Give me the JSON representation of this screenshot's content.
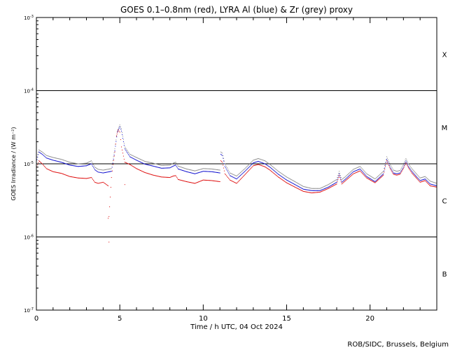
{
  "chart_data": {
    "type": "line",
    "title": "GOES 0.1–0.8nm (red), LYRA Al (blue) & Zr (grey) proxy",
    "xlabel": "Time / h UTC, 04 Oct 2024",
    "ylabel": "GOES Irradiance / (W m⁻²)",
    "credit": "ROB/SIDC, Brussels, Belgium",
    "xlim": [
      0,
      24
    ],
    "ylim": [
      1e-07,
      0.001
    ],
    "yscale": "log",
    "x_ticks": [
      {
        "value": 0,
        "label": "0"
      },
      {
        "value": 5,
        "label": "5"
      },
      {
        "value": 10,
        "label": "10"
      },
      {
        "value": 15,
        "label": "15"
      },
      {
        "value": 20,
        "label": "20"
      }
    ],
    "y_ticks": [
      {
        "value": 0.001,
        "base": "10",
        "exp": "-3"
      },
      {
        "value": 0.0001,
        "base": "10",
        "exp": "-4"
      },
      {
        "value": 1e-05,
        "base": "10",
        "exp": "-5"
      },
      {
        "value": 1e-06,
        "base": "10",
        "exp": "-6"
      },
      {
        "value": 1e-07,
        "base": "10",
        "exp": "-7"
      }
    ],
    "flare_class_lines": [
      0.0001,
      1e-05,
      1e-06
    ],
    "flare_classes": [
      {
        "label": "X",
        "value": 0.000316
      },
      {
        "label": "M",
        "value": 3.16e-05
      },
      {
        "label": "C",
        "value": 3.16e-06
      },
      {
        "label": "B",
        "value": 3.16e-07
      }
    ],
    "colors": {
      "goes": "#dd0000",
      "lyra_al": "#0000cc",
      "lyra_zr": "#888888",
      "axis": "#000000"
    },
    "series": [
      {
        "key": "lyra_zr",
        "x": [
          0,
          0.15,
          0.35,
          0.6,
          1.0,
          1.5,
          2.0,
          2.5,
          3.0,
          3.3,
          3.5,
          3.7,
          4.0,
          4.5,
          4.7,
          4.85,
          5.0,
          5.1,
          5.3,
          5.6,
          6.0,
          6.5,
          7.0,
          7.5,
          8.0,
          8.2,
          8.35,
          8.5,
          9.0,
          9.5,
          10.0,
          10.5,
          11.0,
          11.05,
          11.15,
          11.3,
          11.6,
          12.0,
          12.5,
          13.0,
          13.3,
          13.7,
          14.0,
          14.5,
          15.0,
          15.5,
          16.0,
          16.5,
          17.0,
          17.5,
          18.0,
          18.15,
          18.3,
          18.5,
          19.0,
          19.4,
          19.8,
          20.3,
          20.8,
          21.0,
          21.2,
          21.4,
          21.6,
          21.8,
          22.0,
          22.15,
          22.3,
          22.5,
          22.8,
          23.0,
          23.3,
          23.6,
          24.0
        ],
        "y": [
          1.15e-05,
          1.55e-05,
          1.45e-05,
          1.3e-05,
          1.22e-05,
          1.15e-05,
          1.05e-05,
          1e-05,
          1.02e-05,
          1.1e-05,
          9e-06,
          8.4e-06,
          8.2e-06,
          8.6e-06,
          1.6e-05,
          2.8e-05,
          3.4e-05,
          3e-05,
          1.7e-05,
          1.35e-05,
          1.22e-05,
          1.08e-05,
          1.02e-05,
          9.5e-06,
          9.6e-06,
          1.02e-05,
          1.05e-05,
          9.3e-06,
          8.5e-06,
          8e-06,
          8.6e-06,
          8.5e-06,
          8.2e-06,
          1.45e-05,
          1.4e-05,
          1e-05,
          7.5e-06,
          6.8e-06,
          8.6e-06,
          1.12e-05,
          1.18e-05,
          1.1e-05,
          9.8e-06,
          7.9e-06,
          6.6e-06,
          5.7e-06,
          4.9e-06,
          4.6e-06,
          4.6e-06,
          5.2e-06,
          6.1e-06,
          7.9e-06,
          6.1e-06,
          6.6e-06,
          8.4e-06,
          9.2e-06,
          7.3e-06,
          6.2e-06,
          7.9e-06,
          1.25e-05,
          9.8e-06,
          8.2e-06,
          7.9e-06,
          8.1e-06,
          9.8e-06,
          1.18e-05,
          1e-05,
          8.6e-06,
          7.2e-06,
          6.4e-06,
          6.7e-06,
          5.8e-06,
          5.4e-06
        ]
      },
      {
        "key": "lyra_al",
        "x": [
          0,
          0.15,
          0.35,
          0.6,
          1.0,
          1.5,
          2.0,
          2.5,
          3.0,
          3.3,
          3.5,
          3.7,
          4.0,
          4.5,
          4.7,
          4.85,
          5.0,
          5.1,
          5.3,
          5.6,
          6.0,
          6.5,
          7.0,
          7.5,
          8.0,
          8.2,
          8.35,
          8.5,
          9.0,
          9.5,
          10.0,
          10.5,
          11.0,
          11.05,
          11.15,
          11.3,
          11.6,
          12.0,
          12.5,
          13.0,
          13.3,
          13.7,
          14.0,
          14.5,
          15.0,
          15.5,
          16.0,
          16.5,
          17.0,
          17.5,
          18.0,
          18.15,
          18.3,
          18.5,
          19.0,
          19.4,
          19.8,
          20.3,
          20.8,
          21.0,
          21.2,
          21.4,
          21.6,
          21.8,
          22.0,
          22.15,
          22.3,
          22.5,
          22.8,
          23.0,
          23.3,
          23.6,
          24.0
        ],
        "y": [
          1.05e-05,
          1.45e-05,
          1.35e-05,
          1.2e-05,
          1.12e-05,
          1.05e-05,
          9.6e-06,
          9.2e-06,
          9.4e-06,
          1e-05,
          8.3e-06,
          7.7e-06,
          7.5e-06,
          7.9e-06,
          1.5e-05,
          2.7e-05,
          3.2e-05,
          2.8e-05,
          1.6e-05,
          1.25e-05,
          1.12e-05,
          9.9e-06,
          9.3e-06,
          8.7e-06,
          8.8e-06,
          9.3e-06,
          9.6e-06,
          8.5e-06,
          7.8e-06,
          7.3e-06,
          7.9e-06,
          7.8e-06,
          7.5e-06,
          1.35e-05,
          1.3e-05,
          9.2e-06,
          6.9e-06,
          6.2e-06,
          7.9e-06,
          1.03e-05,
          1.08e-05,
          1e-05,
          9e-06,
          7.2e-06,
          6e-06,
          5.2e-06,
          4.5e-06,
          4.3e-06,
          4.3e-06,
          4.8e-06,
          5.6e-06,
          7.3e-06,
          5.6e-06,
          6.1e-06,
          7.8e-06,
          8.5e-06,
          6.7e-06,
          5.7e-06,
          7.3e-06,
          1.15e-05,
          9e-06,
          7.5e-06,
          7.3e-06,
          7.5e-06,
          9e-06,
          1.09e-05,
          9.2e-06,
          7.9e-06,
          6.6e-06,
          5.9e-06,
          6.2e-06,
          5.3e-06,
          5e-06
        ]
      },
      {
        "key": "goes",
        "x": [
          0,
          0.15,
          0.35,
          0.6,
          1.0,
          1.5,
          2.0,
          2.5,
          3.0,
          3.3,
          3.5,
          3.7,
          4.0,
          4.3,
          4.35,
          4.5,
          4.6,
          4.7,
          4.8,
          4.9,
          5.0,
          5.1,
          5.3,
          5.6,
          6.0,
          6.5,
          7.0,
          7.5,
          8.0,
          8.2,
          8.35,
          8.5,
          9.0,
          9.5,
          10.0,
          10.5,
          11.0,
          11.05,
          11.15,
          11.3,
          11.6,
          12.0,
          12.5,
          13.0,
          13.3,
          13.7,
          14.0,
          14.5,
          15.0,
          15.5,
          16.0,
          16.5,
          17.0,
          17.5,
          18.0,
          18.15,
          18.3,
          18.5,
          19.0,
          19.4,
          19.8,
          20.3,
          20.8,
          21.0,
          21.2,
          21.4,
          21.6,
          21.8,
          22.0,
          22.15,
          22.3,
          22.5,
          22.8,
          23.0,
          23.3,
          23.6,
          24.0
        ],
        "y": [
          8.5e-06,
          1.1e-05,
          1e-05,
          8.6e-06,
          7.8e-06,
          7.4e-06,
          6.7e-06,
          6.4e-06,
          6.3e-06,
          6.5e-06,
          5.6e-06,
          5.4e-06,
          5.6e-06,
          5e-06,
          1.9e-06,
          6.5e-06,
          9.8e-06,
          1.45e-05,
          2.4e-05,
          2.9e-05,
          2.7e-05,
          1.7e-05,
          1.05e-05,
          9.8e-06,
          8.6e-06,
          7.6e-06,
          7e-06,
          6.6e-06,
          6.5e-06,
          6.8e-06,
          6.9e-06,
          6.1e-06,
          5.7e-06,
          5.4e-06,
          6e-06,
          5.9e-06,
          5.7e-06,
          1.1e-05,
          1.05e-05,
          7.3e-06,
          6e-06,
          5.4e-06,
          7.1e-06,
          9.4e-06,
          9.8e-06,
          9.1e-06,
          8.2e-06,
          6.6e-06,
          5.5e-06,
          4.8e-06,
          4.2e-06,
          4e-06,
          4.1e-06,
          4.6e-06,
          5.3e-06,
          7e-06,
          5.3e-06,
          5.8e-06,
          7.3e-06,
          8e-06,
          6.4e-06,
          5.5e-06,
          7e-06,
          1.1e-05,
          8.6e-06,
          7.2e-06,
          7e-06,
          7.2e-06,
          8.6e-06,
          1.03e-05,
          8.8e-06,
          7.5e-06,
          6.3e-06,
          5.6e-06,
          5.9e-06,
          5e-06,
          4.8e-06
        ]
      }
    ],
    "goes_outliers": [
      {
        "x": 4.3,
        "y": 1.8e-06
      },
      {
        "x": 4.35,
        "y": 8.5e-07
      },
      {
        "x": 5.3,
        "y": 5.2e-06
      }
    ]
  }
}
